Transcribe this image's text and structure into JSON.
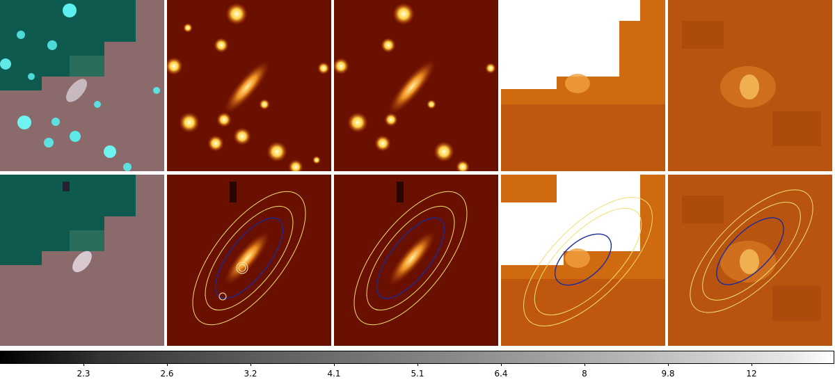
{
  "panels": {
    "rows": 2,
    "columns": 5,
    "top_row_overlay": "none",
    "bottom_row_overlay": "elliptical-contours",
    "column_styles": [
      "rgb-composite",
      "hot-colormap-smooth",
      "hot-colormap-smooth",
      "hot-colormap-masked",
      "hot-colormap-noisy"
    ],
    "contour_colors": {
      "outer": "#f0e070",
      "inner": "#1a2a9a",
      "small_circles": "#ffe8b0"
    }
  },
  "colorbar": {
    "colormap": "gray",
    "ticks": [
      "2.3",
      "2.6",
      "3.2",
      "4.1",
      "5.1",
      "6.4",
      "8",
      "9.8",
      "12"
    ]
  },
  "colors": {
    "hot_dark": "#6a1000",
    "hot_mid": "#c04000",
    "hot_bright": "#ffe080",
    "rgb_cyan": "#0f5a4e",
    "rgb_pink": "#8a6a6a"
  }
}
